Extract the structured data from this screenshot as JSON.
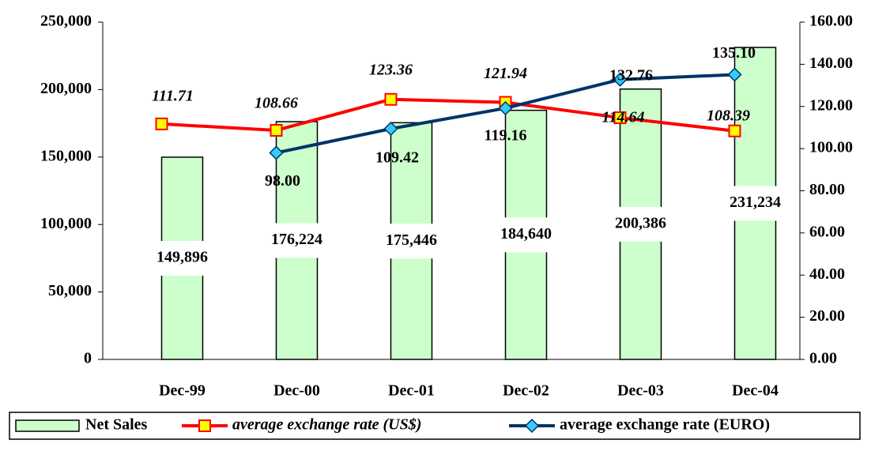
{
  "chart_data": {
    "type": "bar",
    "categories": [
      "Dec-99",
      "Dec-00",
      "Dec-01",
      "Dec-02",
      "Dec-03",
      "Dec-04"
    ],
    "series": [
      {
        "name": "Net Sales",
        "type": "bar",
        "color": "#ccffcc",
        "values": [
          149896,
          176224,
          175446,
          184640,
          200386,
          231234
        ],
        "value_labels": [
          "149,896",
          "176,224",
          "175,446",
          "184,640",
          "200,386",
          "231,234"
        ]
      },
      {
        "name": "average exchange rate (US$)",
        "type": "line",
        "axis": "y2",
        "color": "#ff0000",
        "marker": "square",
        "marker_color": "#ffff00",
        "values": [
          111.71,
          108.66,
          123.36,
          121.94,
          114.64,
          108.39
        ],
        "value_labels": [
          "111.71",
          "108.66",
          "123.36",
          "121.94",
          "114.64",
          "108.39"
        ]
      },
      {
        "name": "average exchange rate (EURO)",
        "type": "line",
        "axis": "y2",
        "color": "#003366",
        "marker": "diamond",
        "marker_color": "#33ccff",
        "values": [
          null,
          98.0,
          109.42,
          119.16,
          132.76,
          135.1
        ],
        "value_labels": [
          null,
          "98.00",
          "109.42",
          "119.16",
          "132.76",
          "135.10"
        ]
      }
    ],
    "ylim": [
      0,
      250000
    ],
    "yticks": [
      0,
      {
        "value": 50000,
        "label": "50,000"
      },
      {
        "value": 100000,
        "label": "100,000"
      },
      {
        "value": 150000,
        "label": "150,000"
      },
      {
        "value": 200000,
        "label": "200,000"
      },
      {
        "value": 250000,
        "label": "250,000"
      }
    ],
    "y2lim": [
      0,
      160
    ],
    "y2ticks": [
      {
        "value": 0,
        "label": "0.00"
      },
      {
        "value": 20,
        "label": "20.00"
      },
      {
        "value": 40,
        "label": "40.00"
      },
      {
        "value": 60,
        "label": "60.00"
      },
      {
        "value": 80,
        "label": "80.00"
      },
      {
        "value": 100,
        "label": "100.00"
      },
      {
        "value": 120,
        "label": "120.00"
      },
      {
        "value": 140,
        "label": "140.00"
      },
      {
        "value": 160,
        "label": "160.00"
      }
    ],
    "grid": false,
    "legend": "bottom"
  }
}
